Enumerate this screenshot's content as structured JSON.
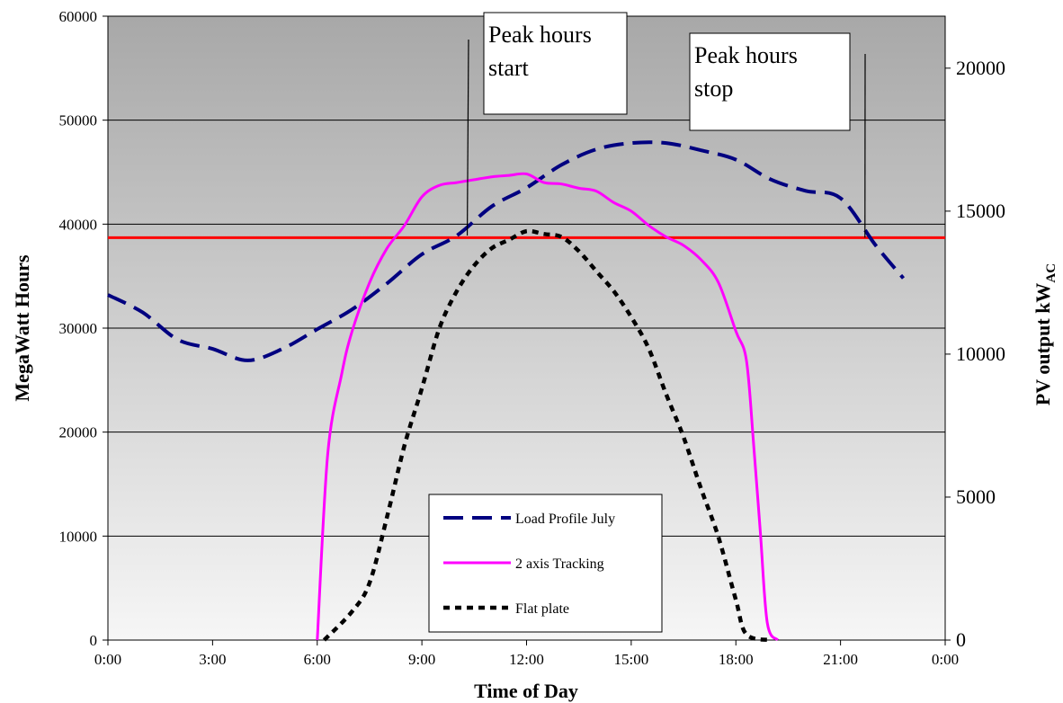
{
  "chart_data": {
    "type": "line",
    "xlabel": "Time of Day",
    "ylabel": "MegaWatt Hours",
    "y2label_main": "PV output kW",
    "y2label_sub": "AC",
    "x_ticks": [
      "0:00",
      "3:00",
      "6:00",
      "9:00",
      "12:00",
      "15:00",
      "18:00",
      "21:00",
      "0:00"
    ],
    "xlim": [
      0,
      24
    ],
    "ylim": [
      0,
      60000
    ],
    "y_ticks": [
      0,
      10000,
      20000,
      30000,
      40000,
      50000,
      60000
    ],
    "y2lim": [
      0,
      21818
    ],
    "y2_ticks": [
      0,
      5000,
      10000,
      15000,
      20000
    ],
    "threshold": {
      "y": 38700,
      "color": "#ff0000"
    },
    "series": [
      {
        "name": "Load Profile July",
        "axis": "left",
        "color": "#000080",
        "style": "dash",
        "points": [
          [
            0,
            33200
          ],
          [
            1,
            31500
          ],
          [
            2,
            28900
          ],
          [
            3,
            28000
          ],
          [
            4,
            26900
          ],
          [
            5,
            28000
          ],
          [
            6,
            29900
          ],
          [
            7,
            31800
          ],
          [
            8,
            34300
          ],
          [
            9,
            37100
          ],
          [
            10,
            38900
          ],
          [
            11,
            41700
          ],
          [
            12,
            43500
          ],
          [
            13,
            45700
          ],
          [
            14,
            47200
          ],
          [
            15,
            47800
          ],
          [
            16,
            47800
          ],
          [
            17,
            47100
          ],
          [
            18,
            46200
          ],
          [
            19,
            44300
          ],
          [
            20,
            43200
          ],
          [
            21,
            42500
          ],
          [
            22,
            38000
          ],
          [
            22.8,
            34800
          ]
        ]
      },
      {
        "name": "2 axis Tracking",
        "axis": "right",
        "color": "#ff00ff",
        "style": "solid",
        "points": [
          [
            6,
            0
          ],
          [
            6.3,
            6500
          ],
          [
            6.7,
            9300
          ],
          [
            7.0,
            10800
          ],
          [
            7.5,
            12500
          ],
          [
            8.0,
            13700
          ],
          [
            8.5,
            14500
          ],
          [
            9.0,
            15500
          ],
          [
            9.5,
            15900
          ],
          [
            10,
            16000
          ],
          [
            10.5,
            16100
          ],
          [
            11,
            16200
          ],
          [
            11.5,
            16250
          ],
          [
            12,
            16300
          ],
          [
            12.5,
            16000
          ],
          [
            13,
            15950
          ],
          [
            13.5,
            15800
          ],
          [
            14,
            15700
          ],
          [
            14.5,
            15300
          ],
          [
            15,
            15000
          ],
          [
            15.5,
            14500
          ],
          [
            16,
            14100
          ],
          [
            16.5,
            13800
          ],
          [
            17,
            13300
          ],
          [
            17.5,
            12500
          ],
          [
            18,
            10800
          ],
          [
            18.3,
            9800
          ],
          [
            18.5,
            7000
          ],
          [
            18.7,
            3800
          ],
          [
            18.9,
            600
          ],
          [
            19.2,
            0
          ]
        ]
      },
      {
        "name": "Flat plate",
        "axis": "right",
        "color": "#000000",
        "style": "dot",
        "points": [
          [
            6.2,
            0
          ],
          [
            7,
            1000
          ],
          [
            7.5,
            2000
          ],
          [
            8,
            4300
          ],
          [
            8.5,
            6800
          ],
          [
            9,
            8800
          ],
          [
            9.5,
            10900
          ],
          [
            10,
            12200
          ],
          [
            10.5,
            13100
          ],
          [
            11,
            13700
          ],
          [
            11.5,
            14000
          ],
          [
            12,
            14300
          ],
          [
            12.5,
            14200
          ],
          [
            13,
            14100
          ],
          [
            13.5,
            13600
          ],
          [
            14,
            12900
          ],
          [
            14.5,
            12200
          ],
          [
            15,
            11300
          ],
          [
            15.5,
            10200
          ],
          [
            16,
            8600
          ],
          [
            16.5,
            7100
          ],
          [
            17,
            5300
          ],
          [
            17.5,
            3600
          ],
          [
            18,
            1400
          ],
          [
            18.3,
            200
          ],
          [
            19,
            0
          ]
        ]
      }
    ],
    "annotations": [
      {
        "lines": [
          "Peak hours",
          "start"
        ],
        "pointer": [
          10.3,
          38900
        ]
      },
      {
        "lines": [
          "Peak hours",
          "stop"
        ],
        "pointer": [
          21.7,
          38700
        ]
      }
    ],
    "legend_position": "bottom-center",
    "grid": true
  }
}
